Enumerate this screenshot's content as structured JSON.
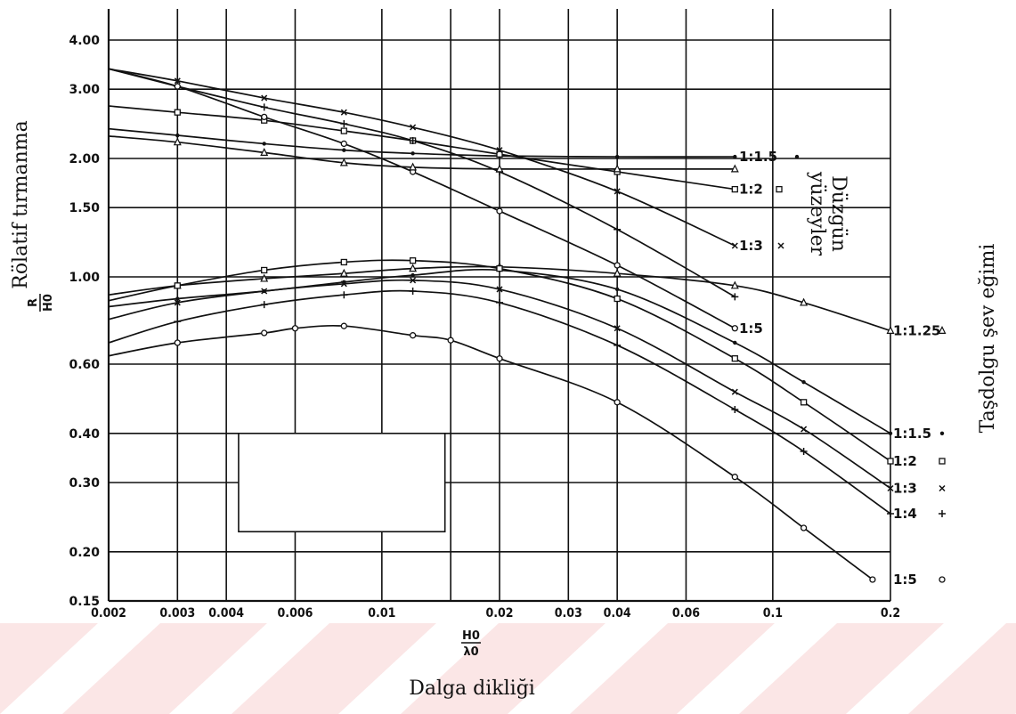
{
  "chart_data": {
    "type": "line",
    "x_scale": "log",
    "y_scale": "log",
    "xlim": [
      0.002,
      0.2
    ],
    "ylim": [
      0.15,
      4.0
    ],
    "grid": true,
    "x_ticks": [
      {
        "value": 0.002,
        "label": "0.002"
      },
      {
        "value": 0.003,
        "label": "0.003"
      },
      {
        "value": 0.004,
        "label": "0.004"
      },
      {
        "value": 0.006,
        "label": "0.006"
      },
      {
        "value": 0.01,
        "label": "0.01"
      },
      {
        "value": 0.02,
        "label": "0.02"
      },
      {
        "value": 0.03,
        "label": "0.03"
      },
      {
        "value": 0.04,
        "label": "0.04"
      },
      {
        "value": 0.06,
        "label": "0.06"
      },
      {
        "value": 0.1,
        "label": "0.1"
      },
      {
        "value": 0.2,
        "label": "0.2"
      }
    ],
    "y_ticks": [
      {
        "value": 4.0,
        "label": "4.00"
      },
      {
        "value": 3.0,
        "label": "3.00"
      },
      {
        "value": 2.0,
        "label": "2.00"
      },
      {
        "value": 1.5,
        "label": "1.50"
      },
      {
        "value": 1.0,
        "label": "1.00"
      },
      {
        "value": 0.6,
        "label": "0.60"
      },
      {
        "value": 0.4,
        "label": "0.40"
      },
      {
        "value": 0.3,
        "label": "0.30"
      },
      {
        "value": 0.2,
        "label": "0.20"
      },
      {
        "value": 0.15,
        "label": "0.15"
      }
    ],
    "x_label_top": "H0",
    "x_label_bottom": "λ0",
    "x_title": "Dalga dikliği",
    "y_label_top": "R",
    "y_label_bottom": "H0",
    "y_title": "Rölatif tırmanma",
    "right_title": "Taşdolgu şev eğimi",
    "smooth_title_line1": "Düzgün",
    "smooth_title_line2": "yüzeyler",
    "smooth_series": [
      {
        "name": "1:1.5",
        "label": "1:1.5",
        "marker": "dot",
        "x": [
          0.002,
          0.003,
          0.005,
          0.008,
          0.012,
          0.02,
          0.04,
          0.08
        ],
        "y": [
          2.38,
          2.29,
          2.18,
          2.1,
          2.06,
          2.03,
          2.02,
          2.02
        ]
      },
      {
        "name": "1:2",
        "label": "1:2",
        "marker": "square",
        "x": [
          0.002,
          0.003,
          0.005,
          0.008,
          0.012,
          0.02,
          0.04,
          0.08
        ],
        "y": [
          2.72,
          2.62,
          2.5,
          2.35,
          2.22,
          2.05,
          1.85,
          1.67
        ]
      },
      {
        "name": "1:3",
        "label": "1:3",
        "marker": "x",
        "x": [
          0.002,
          0.003,
          0.005,
          0.008,
          0.012,
          0.02,
          0.04,
          0.08
        ],
        "y": [
          3.38,
          3.15,
          2.85,
          2.62,
          2.4,
          2.1,
          1.65,
          1.2
        ]
      },
      {
        "name": "1:4",
        "label": "",
        "marker": "plus",
        "x": [
          0.002,
          0.003,
          0.005,
          0.008,
          0.012,
          0.02,
          0.04,
          0.08
        ],
        "y": [
          3.38,
          3.05,
          2.7,
          2.45,
          2.22,
          1.85,
          1.32,
          0.89
        ]
      },
      {
        "name": "1:5",
        "label": "1:5",
        "marker": "circle",
        "x": [
          0.002,
          0.003,
          0.005,
          0.008,
          0.012,
          0.02,
          0.04,
          0.08
        ],
        "y": [
          3.38,
          3.05,
          2.55,
          2.18,
          1.85,
          1.47,
          1.07,
          0.74
        ]
      },
      {
        "name": "1:1.25",
        "label": "",
        "marker": "triangle",
        "x": [
          0.002,
          0.003,
          0.005,
          0.008,
          0.012,
          0.02,
          0.04,
          0.08
        ],
        "y": [
          2.28,
          2.2,
          2.07,
          1.95,
          1.9,
          1.88,
          1.88,
          1.88
        ]
      }
    ],
    "rock_series": [
      {
        "name": "1:1.25",
        "label": "1:1.25",
        "marker": "triangle",
        "x": [
          0.002,
          0.003,
          0.005,
          0.008,
          0.012,
          0.02,
          0.04,
          0.08,
          0.12,
          0.2
        ],
        "y": [
          0.9,
          0.95,
          0.99,
          1.02,
          1.05,
          1.06,
          1.02,
          0.95,
          0.86,
          0.73
        ]
      },
      {
        "name": "1:1.5",
        "label": "1:1.5",
        "marker": "dot",
        "x": [
          0.002,
          0.003,
          0.005,
          0.008,
          0.012,
          0.02,
          0.04,
          0.08,
          0.12,
          0.2
        ],
        "y": [
          0.84,
          0.88,
          0.92,
          0.97,
          1.01,
          1.04,
          0.93,
          0.68,
          0.54,
          0.4
        ]
      },
      {
        "name": "1:2",
        "label": "1:2",
        "marker": "square",
        "x": [
          0.002,
          0.003,
          0.005,
          0.008,
          0.012,
          0.02,
          0.04,
          0.08,
          0.12,
          0.2
        ],
        "y": [
          0.87,
          0.95,
          1.04,
          1.09,
          1.1,
          1.05,
          0.88,
          0.62,
          0.48,
          0.34
        ]
      },
      {
        "name": "1:3",
        "label": "1:3",
        "marker": "x",
        "x": [
          0.002,
          0.003,
          0.005,
          0.008,
          0.012,
          0.02,
          0.04,
          0.08,
          0.12,
          0.2
        ],
        "y": [
          0.78,
          0.86,
          0.92,
          0.96,
          0.98,
          0.93,
          0.74,
          0.51,
          0.41,
          0.29
        ]
      },
      {
        "name": "1:4",
        "label": "1:4",
        "marker": "plus",
        "x": [
          0.002,
          0.003,
          0.005,
          0.008,
          0.012,
          0.02,
          0.04,
          0.08,
          0.12,
          0.2
        ],
        "y": [
          0.68,
          0.77,
          0.85,
          0.9,
          0.92,
          0.86,
          0.67,
          0.46,
          0.36,
          0.25
        ]
      },
      {
        "name": "1:5",
        "label": "1:5",
        "marker": "circle",
        "x": [
          0.002,
          0.003,
          0.005,
          0.006,
          0.008,
          0.012,
          0.015,
          0.02,
          0.04,
          0.08,
          0.12,
          0.18
        ],
        "y": [
          0.63,
          0.68,
          0.72,
          0.74,
          0.75,
          0.71,
          0.69,
          0.62,
          0.48,
          0.31,
          0.23,
          0.17
        ]
      }
    ],
    "smooth_labels": [
      {
        "text": "1:1.5",
        "marker": "dot"
      },
      {
        "text": "1:2",
        "marker": "square"
      },
      {
        "text": "1:3",
        "marker": "x"
      },
      {
        "text": "1:5",
        "marker": "circle"
      }
    ],
    "rock_labels": [
      {
        "text": "1:1.25",
        "marker": "triangle"
      },
      {
        "text": "1:1.5",
        "marker": "dot"
      },
      {
        "text": "1:2",
        "marker": "square"
      },
      {
        "text": "1:3",
        "marker": "x"
      },
      {
        "text": "1:4",
        "marker": "plus"
      },
      {
        "text": "1:5",
        "marker": "circle"
      }
    ],
    "colors": {
      "line": "#111111",
      "grid": "#111111",
      "background": "#ffffff",
      "watermark": "#fbe6e6"
    }
  }
}
